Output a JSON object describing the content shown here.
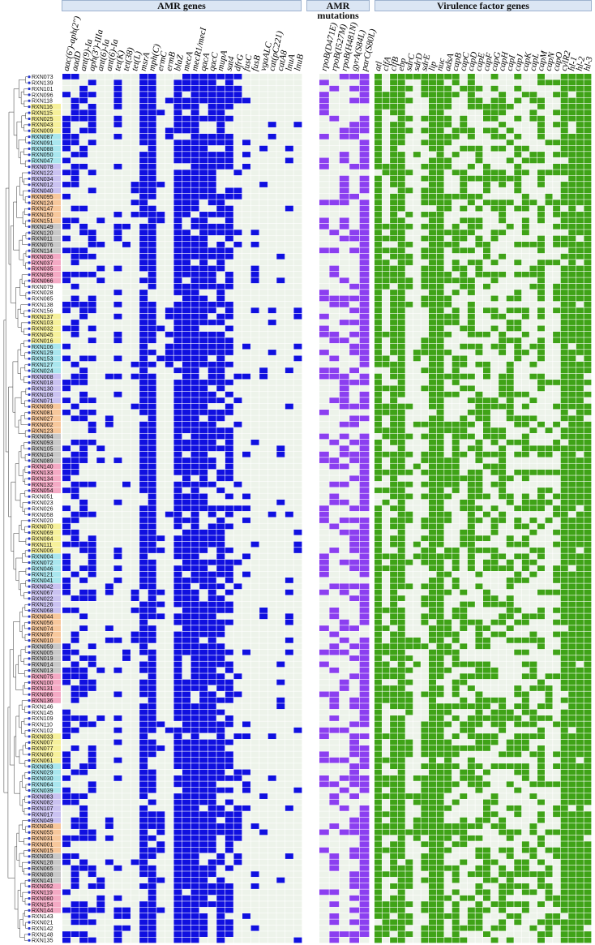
{
  "headers": {
    "amr_genes": "AMR genes",
    "amr_mutations": "AMR mutations",
    "virulence": "Virulence factor genes"
  },
  "colors": {
    "amr_genes": "#1010e0",
    "amr_mutations": "#8b3ff0",
    "virulence": "#3fa317",
    "absent": "#edf3ea",
    "tree": "#555555",
    "tip": "#2233cc"
  },
  "chart_data": {
    "type": "heatmap",
    "groups": [
      {
        "name": "AMR genes",
        "columns": [
          "aac(6')-aph(2'')",
          "aadD",
          "ant(9)-Ia",
          "aph(3')-IIIa",
          "ant(6)-Ia",
          "ant(6)-Ia",
          "tet(K)",
          "tet(38)",
          "tet(L)",
          "msrA",
          "mph(C)",
          "ermC",
          "ermB",
          "blaZ",
          "mecA",
          "mecR1/mecI",
          "qacA",
          "qacC",
          "mupA",
          "sat4",
          "dfrG",
          "fusC",
          "fusB",
          "vgaALC",
          "cat(pC221)",
          "catA8",
          "lnuA",
          "lnuB"
        ]
      },
      {
        "name": "AMR mutations",
        "columns": [
          "rpoB(D471E)",
          "rpoB(I527M)",
          "rpoB(H481N)",
          "gyrA(S84L)",
          "parC(S80L)"
        ]
      },
      {
        "name": "Virulence factor genes",
        "columns": [
          "atl",
          "clfA",
          "clfB",
          "ebp",
          "sdrC",
          "sdrD",
          "sdrE",
          "lip",
          "nuc",
          "adsA",
          "capB",
          "capC",
          "capD",
          "capE",
          "capF",
          "capG",
          "capH",
          "capI",
          "capJ",
          "capK",
          "capL",
          "capM",
          "capN",
          "capO",
          "cylR2",
          "hl-1",
          "hl-2",
          "hl-3"
        ]
      }
    ],
    "isolates": [
      "RXN073",
      "RXN139",
      "RXN101",
      "RXN096",
      "RXN118",
      "RXN116",
      "RXN115",
      "RXN025",
      "RXN043",
      "RXN009",
      "RXN087",
      "RXN091",
      "RXN088",
      "RXN050",
      "RXN047",
      "RXN078",
      "RXN122",
      "RXN034",
      "RXN012",
      "RXN040",
      "RXN095",
      "RXN124",
      "RXN147",
      "RXN150",
      "RXN151",
      "RXN149",
      "RXN120",
      "RXN011",
      "RXN076",
      "RXN114",
      "RXN036",
      "RXN037",
      "RXN035",
      "RXN098",
      "RXN066",
      "RXN079",
      "RXN028",
      "RXN085",
      "RXN138",
      "RXN156",
      "RXN137",
      "RXN103",
      "RXN032",
      "RXN045",
      "RXN016",
      "RXN106",
      "RXN129",
      "RXN153",
      "RXN127",
      "RXN024",
      "RXN008",
      "RXN018",
      "RXN130",
      "RXN108",
      "RXN071",
      "RXN099",
      "RXN081",
      "RXN027",
      "RXN002",
      "RXN123",
      "RXN094",
      "RXN093",
      "RXN105",
      "RXN104",
      "RXN089",
      "RXN140",
      "RXN133",
      "RXN134",
      "RXN132",
      "RXN054",
      "RXN051",
      "RXN023",
      "RXN026",
      "RXN058",
      "RXN020",
      "RXN070",
      "RXN069",
      "RXN084",
      "RXN111",
      "RXN006",
      "RXN004",
      "RXN072",
      "RXN046",
      "RXN121",
      "RXN041",
      "RXN042",
      "RXN067",
      "RXN022",
      "RXN126",
      "RXN068",
      "RXN044",
      "RXN056",
      "RXN074",
      "RXN097",
      "RXN010",
      "RXN059",
      "RXN005",
      "RXN019",
      "RXN014",
      "RXN013",
      "RXN075",
      "RXN100",
      "RXN131",
      "RXN086",
      "RXN136",
      "RXN146",
      "RXN145",
      "RXN109",
      "RXN110",
      "RXN102",
      "RXN033",
      "RXN007",
      "RXN077",
      "RXN060",
      "RXN061",
      "RXN063",
      "RXN029",
      "RXN030",
      "RXN064",
      "RXN039",
      "RXN083",
      "RXN082",
      "RXN107",
      "RXN017",
      "RXN049",
      "RXN048",
      "RXN055",
      "RXN031",
      "RXN001",
      "RXN015",
      "RXN003",
      "RXN128",
      "RXN065",
      "RXN038",
      "RXN141",
      "RXN092",
      "RXN119",
      "RXN080",
      "RXN154",
      "RXN144",
      "RXN143",
      "RXN021",
      "RXN142",
      "RXN148",
      "RXN135"
    ],
    "label_highlight_colors": [
      "#ffffff",
      "#f6f09a",
      "#a9e6ee",
      "#c9c1f0",
      "#f7c79b",
      "#c8c8c8",
      "#f4a9c4"
    ],
    "legend": "none"
  }
}
